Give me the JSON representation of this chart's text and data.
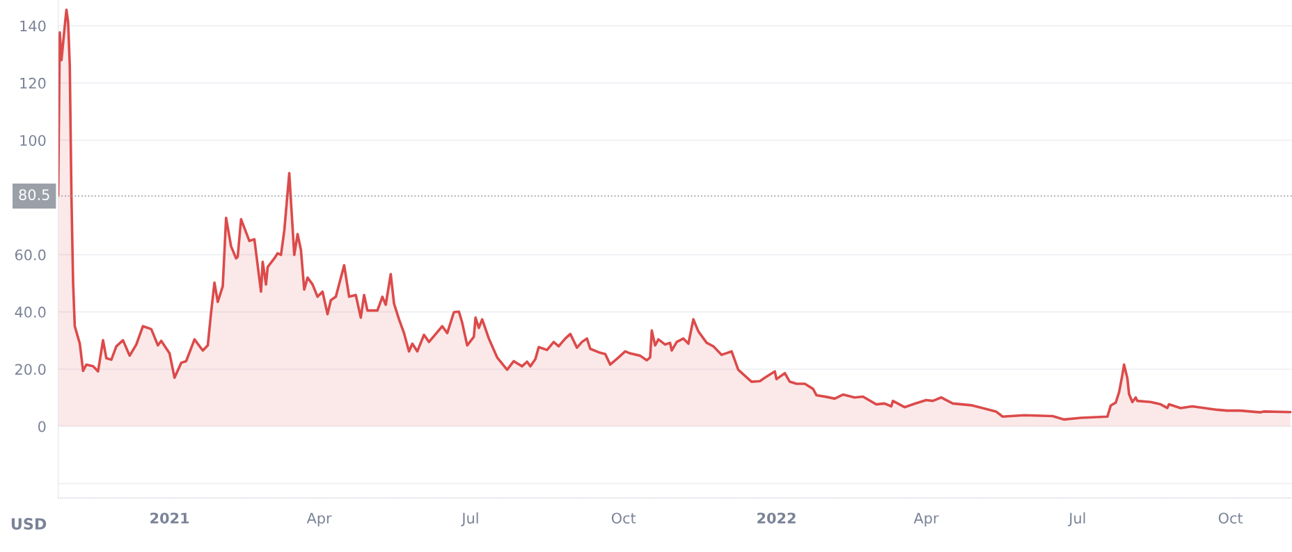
{
  "chart_data": {
    "type": "area",
    "x": [
      "2020-10-26",
      "2020-10-27",
      "2020-10-28",
      "2020-10-30",
      "2020-10-31",
      "2020-11-01",
      "2020-11-02",
      "2020-11-03",
      "2020-11-04",
      "2020-11-05",
      "2020-11-08",
      "2020-11-10",
      "2020-11-12",
      "2020-11-16",
      "2020-11-19",
      "2020-11-22",
      "2020-11-24",
      "2020-11-27",
      "2020-11-30",
      "2020-12-04",
      "2020-12-08",
      "2020-12-12",
      "2020-12-16",
      "2020-12-21",
      "2020-12-25",
      "2020-12-27",
      "2021-01-01",
      "2021-01-04",
      "2021-01-08",
      "2021-01-11",
      "2021-01-16",
      "2021-01-21",
      "2021-01-24",
      "2021-01-26",
      "2021-01-28",
      "2021-01-30",
      "2021-02-02",
      "2021-02-04",
      "2021-02-07",
      "2021-02-10",
      "2021-02-11",
      "2021-02-13",
      "2021-02-18",
      "2021-02-21",
      "2021-02-25",
      "2021-02-26",
      "2021-02-28",
      "2021-03-01",
      "2021-03-05",
      "2021-03-07",
      "2021-03-09",
      "2021-03-11",
      "2021-03-14",
      "2021-03-15",
      "2021-03-17",
      "2021-03-19",
      "2021-03-21",
      "2021-03-23",
      "2021-03-25",
      "2021-03-28",
      "2021-03-31",
      "2021-04-03",
      "2021-04-06",
      "2021-04-08",
      "2021-04-11",
      "2021-04-16",
      "2021-04-19",
      "2021-04-23",
      "2021-04-26",
      "2021-04-28",
      "2021-04-30",
      "2021-05-06",
      "2021-05-09",
      "2021-05-11",
      "2021-05-14",
      "2021-05-16",
      "2021-05-19",
      "2021-05-22",
      "2021-05-25",
      "2021-05-27",
      "2021-05-30",
      "2021-06-03",
      "2021-06-06",
      "2021-06-14",
      "2021-06-17",
      "2021-06-21",
      "2021-06-24",
      "2021-06-26",
      "2021-06-29",
      "2021-07-03",
      "2021-07-04",
      "2021-07-06",
      "2021-07-08",
      "2021-07-12",
      "2021-07-17",
      "2021-07-23",
      "2021-07-27",
      "2021-08-01",
      "2021-08-04",
      "2021-08-06",
      "2021-08-09",
      "2021-08-11",
      "2021-08-16",
      "2021-08-20",
      "2021-08-23",
      "2021-08-27",
      "2021-08-30",
      "2021-09-03",
      "2021-09-06",
      "2021-09-09",
      "2021-09-11",
      "2021-09-16",
      "2021-09-20",
      "2021-09-23",
      "2021-09-28",
      "2021-10-02",
      "2021-10-05",
      "2021-10-11",
      "2021-10-15",
      "2021-10-17",
      "2021-10-18",
      "2021-10-20",
      "2021-10-22",
      "2021-10-26",
      "2021-10-29",
      "2021-10-30",
      "2021-11-02",
      "2021-11-06",
      "2021-11-09",
      "2021-11-12",
      "2021-11-15",
      "2021-11-20",
      "2021-11-24",
      "2021-11-29",
      "2021-12-05",
      "2021-12-09",
      "2021-12-17",
      "2021-12-22",
      "2021-12-25",
      "2021-12-31",
      "2022-01-01",
      "2022-01-06",
      "2022-01-09",
      "2022-01-13",
      "2022-01-18",
      "2022-01-23",
      "2022-01-25",
      "2022-01-31",
      "2022-02-05",
      "2022-02-10",
      "2022-02-17",
      "2022-02-22",
      "2022-03-02",
      "2022-03-07",
      "2022-03-11",
      "2022-03-12",
      "2022-03-19",
      "2022-03-25",
      "2022-04-01",
      "2022-04-05",
      "2022-04-10",
      "2022-04-17",
      "2022-04-28",
      "2022-05-07",
      "2022-05-13",
      "2022-05-17",
      "2022-05-30",
      "2022-06-16",
      "2022-06-23",
      "2022-07-03",
      "2022-07-19",
      "2022-07-21",
      "2022-07-24",
      "2022-07-26",
      "2022-07-28",
      "2022-07-29",
      "2022-07-31",
      "2022-08-01",
      "2022-08-03",
      "2022-08-05",
      "2022-08-06",
      "2022-08-14",
      "2022-08-20",
      "2022-08-24",
      "2022-08-25",
      "2022-09-01",
      "2022-09-08",
      "2022-09-23",
      "2022-09-29",
      "2022-10-07",
      "2022-10-19",
      "2022-10-21",
      "2022-11-06"
    ],
    "series": [
      {
        "color": "#dc4a4a",
        "values": [
          80.5,
          137.7,
          128,
          140,
          145.6,
          141.3,
          126,
          80.5,
          50.2,
          35,
          29,
          19.4,
          21.6,
          21,
          19.2,
          30.1,
          23.8,
          23.3,
          28,
          30.1,
          24.7,
          28.6,
          35,
          34,
          28.3,
          29.9,
          25.5,
          17,
          22.2,
          22.8,
          30.4,
          26.5,
          28.3,
          39.9,
          50.2,
          43.5,
          49,
          72.9,
          62.9,
          58.7,
          59.3,
          72.4,
          64.8,
          65.4,
          47.1,
          57.5,
          49.6,
          55.7,
          58.7,
          60.5,
          59.9,
          68.4,
          88.5,
          78.7,
          59.9,
          67.2,
          61.7,
          47.8,
          52,
          49.6,
          45.3,
          47.1,
          39.2,
          44.1,
          45.3,
          56.3,
          45.3,
          45.9,
          38,
          45.9,
          40.5,
          40.5,
          45.3,
          42.5,
          53.2,
          42.9,
          37.4,
          32.6,
          26.2,
          28.9,
          26.2,
          32,
          29.5,
          35,
          32.6,
          39.9,
          40.1,
          36.2,
          28.3,
          31.3,
          38,
          34.4,
          37.4,
          30.7,
          24.1,
          19.8,
          22.8,
          21,
          22.6,
          21,
          23.5,
          27.7,
          26.7,
          29.5,
          28,
          30.7,
          32.3,
          27.5,
          29.5,
          30.7,
          27.1,
          25.9,
          25.3,
          21.6,
          24.1,
          26.2,
          25.5,
          24.7,
          23.1,
          24.1,
          33.5,
          28.3,
          30.4,
          28.6,
          29.2,
          26.5,
          29.5,
          30.7,
          28.9,
          37.4,
          33.2,
          29.2,
          28,
          25,
          26.2,
          19.8,
          15.6,
          15.8,
          17,
          19.2,
          16.5,
          18.6,
          15.6,
          14.9,
          14.9,
          13.1,
          10.9,
          10.3,
          9.7,
          11.1,
          10.1,
          10.4,
          7.7,
          8,
          7,
          8.9,
          6.7,
          7.9,
          9.2,
          8.9,
          10.1,
          8,
          7.4,
          6.1,
          5.2,
          3.4,
          3.9,
          3.6,
          2.4,
          3,
          3.4,
          7.3,
          8.3,
          11.9,
          18,
          21.6,
          16.8,
          11.3,
          8.5,
          10.1,
          8.9,
          8.5,
          7.7,
          6.4,
          7.7,
          6.4,
          7,
          5.8,
          5.5,
          5.5,
          4.9,
          5.2,
          5
        ]
      }
    ],
    "xlim": [
      "2020-10-26",
      "2022-11-07"
    ],
    "xticks": [
      {
        "value": "2021-01-01",
        "label": "2021"
      },
      {
        "value": "2021-04-01",
        "label": "Apr"
      },
      {
        "value": "2021-07-01",
        "label": "Jul"
      },
      {
        "value": "2021-10-01",
        "label": "Oct"
      },
      {
        "value": "2022-01-01",
        "label": "2022"
      },
      {
        "value": "2022-04-01",
        "label": "Apr"
      },
      {
        "value": "2022-07-01",
        "label": "Jul"
      },
      {
        "value": "2022-10-01",
        "label": "Oct"
      }
    ],
    "ylim": [
      -25,
      149
    ],
    "yticks": [
      {
        "value": -20,
        "label": null
      },
      0,
      {
        "value": 20,
        "label": "20.0"
      },
      {
        "value": 40,
        "label": "40.0"
      },
      {
        "value": 60,
        "label": "60.0"
      },
      100,
      120,
      140
    ],
    "ref_lines": [
      {
        "axis": "y",
        "value": 80.5,
        "label": "80.5",
        "color": "#9a9fa8",
        "line_style": "dotted"
      }
    ],
    "grid": "y",
    "annotations": [
      "USD"
    ]
  }
}
